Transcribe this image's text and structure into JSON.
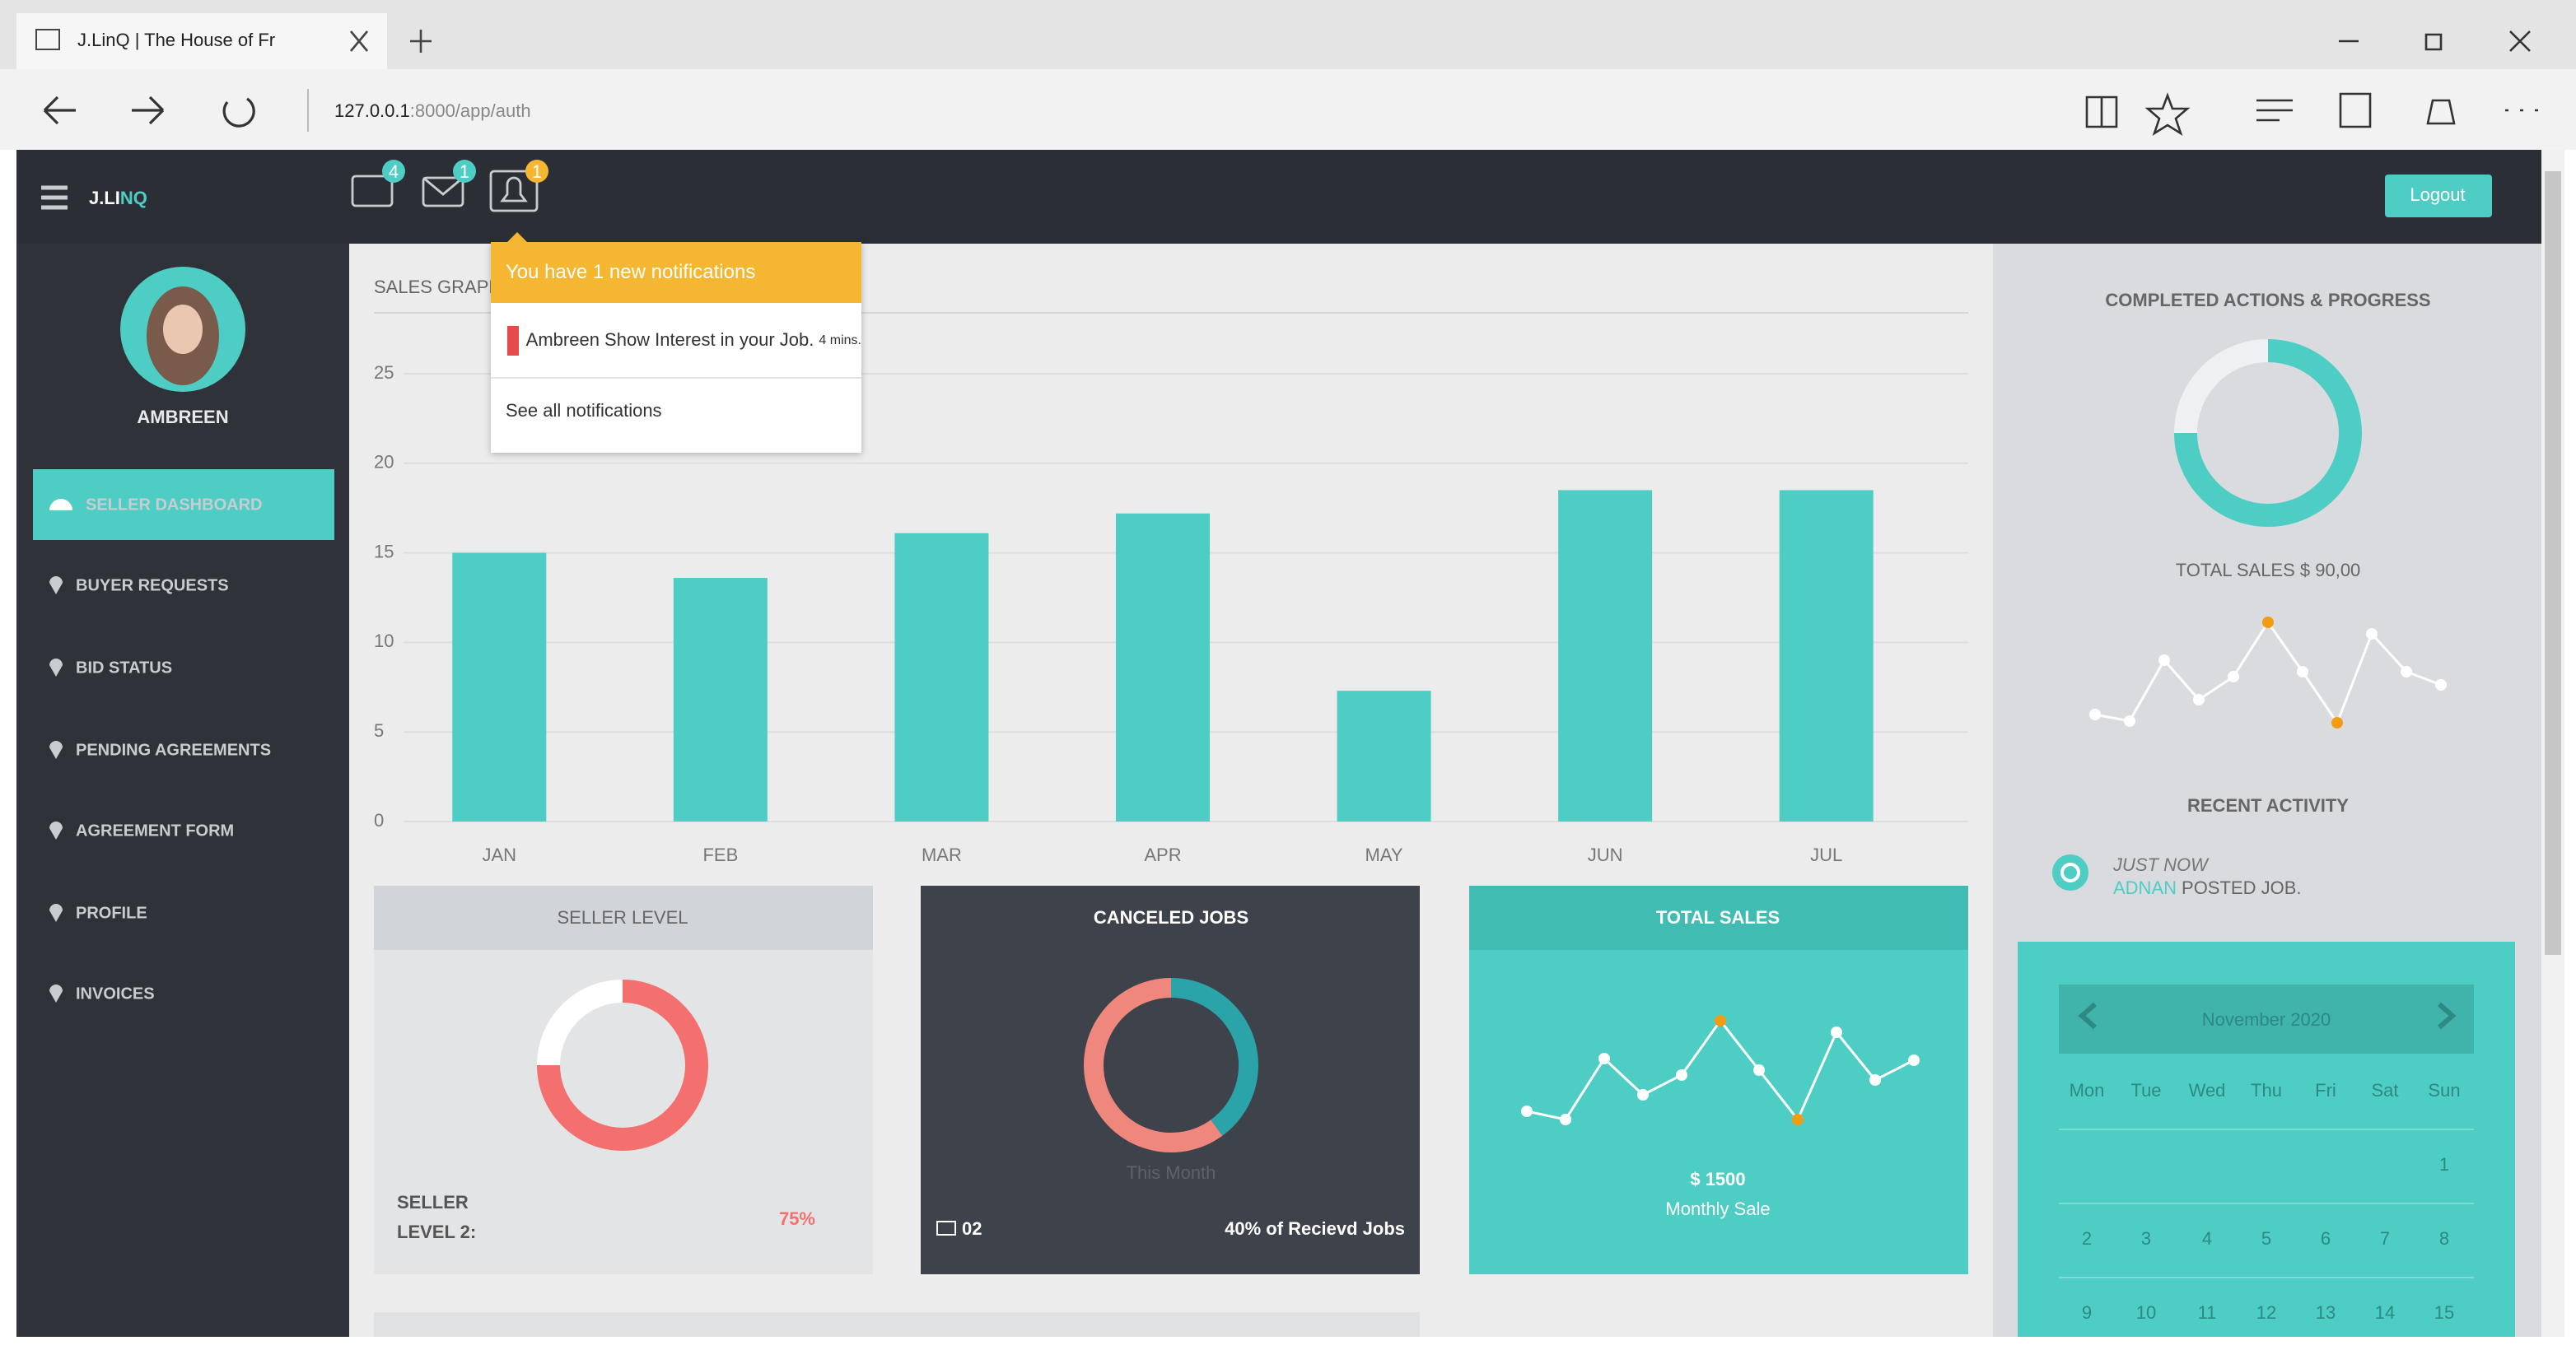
{
  "browser": {
    "tab_title": "J.LinQ | The House of Fr",
    "url_host": "127.0.0.1",
    "url_rest": ":8000/app/auth"
  },
  "header": {
    "logo": "J.LI",
    "logo_accent": "NQ",
    "badges": [
      4,
      1,
      1
    ],
    "logout": "Logout"
  },
  "notifications": {
    "title": "You have 1 new notifications",
    "item": "Ambreen Show Interest in your Job.",
    "time": "4 mins.",
    "footer": "See all notifications"
  },
  "sidebar": {
    "user": "AMBREEN",
    "items": [
      "SELLER DASHBOARD",
      "BUYER REQUESTS",
      "BID STATUS",
      "PENDING AGREEMENTS",
      "AGREEMENT FORM",
      "PROFILE",
      "INVOICES"
    ]
  },
  "cards": {
    "seller": {
      "title": "SELLER LEVEL",
      "label_1": "SELLER",
      "label_2": "LEVEL 2:"
    },
    "canceled": {
      "title": "CANCELED JOBS",
      "period": "This Month",
      "count": "02",
      "caption": "40% of Recievd Jobs"
    },
    "total": {
      "title": "TOTAL SALES",
      "amount": "$ 1500",
      "caption": "Monthly Sale"
    }
  },
  "right_panel": {
    "title": "COMPLETED ACTIONS & PROGRESS",
    "total": "TOTAL SALES $ 90,00",
    "activity_title": "RECENT ACTIVITY",
    "activity_time": "JUST NOW",
    "activity_user": "ADNAN",
    "activity_text": "POSTED JOB."
  },
  "calendar": {
    "month": "November 2020",
    "weekdays": [
      "Mon",
      "Tue",
      "Wed",
      "Thu",
      "Fri",
      "Sat",
      "Sun"
    ],
    "weeks": [
      [
        null,
        null,
        null,
        null,
        null,
        null,
        1
      ],
      [
        2,
        3,
        4,
        5,
        6,
        7,
        8
      ],
      [
        9,
        10,
        11,
        12,
        13,
        14,
        15
      ]
    ]
  },
  "chart_data": [
    {
      "type": "bar",
      "title": "SALES GRAPH",
      "categories": [
        "JAN",
        "FEB",
        "MAR",
        "APR",
        "MAY",
        "JUN",
        "JUL"
      ],
      "values": [
        15,
        13.6,
        16.1,
        17.2,
        7.3,
        18.5,
        18.5
      ],
      "color": "#4ecdc4",
      "ylim": [
        0,
        25
      ],
      "yticks": [
        0,
        5,
        10,
        15,
        20,
        25
      ],
      "grid": true
    },
    {
      "type": "donut",
      "values": [
        75,
        25
      ],
      "value_labels": [
        "75%",
        null
      ],
      "colors": [
        "#f4706e",
        "#ffffff"
      ]
    },
    {
      "type": "donut",
      "values": [
        40,
        60
      ],
      "colors": [
        "#2aa3a9",
        "#f0877c"
      ]
    },
    {
      "type": "line",
      "values": [
        25,
        20,
        57,
        35,
        47,
        80,
        50,
        20,
        73,
        44,
        56
      ],
      "color": "#ffffff",
      "point_colors": [
        "#ffffff",
        "#ffffff",
        "#ffffff",
        "#ffffff",
        "#ffffff",
        "#f39c12",
        "#ffffff",
        "#f39c12",
        "#ffffff",
        "#ffffff",
        "#ffffff"
      ]
    },
    {
      "type": "donut",
      "values": [
        75,
        25
      ],
      "colors": [
        "#4ecdc4",
        "#eef0f2"
      ]
    },
    {
      "type": "line",
      "values": [
        16,
        12,
        49,
        25,
        39,
        72,
        42,
        11,
        65,
        42,
        34
      ],
      "color": "#ffffff",
      "point_colors": [
        "#ffffff",
        "#ffffff",
        "#ffffff",
        "#ffffff",
        "#ffffff",
        "#f39c12",
        "#ffffff",
        "#f39c12",
        "#ffffff",
        "#ffffff",
        "#ffffff"
      ]
    }
  ]
}
